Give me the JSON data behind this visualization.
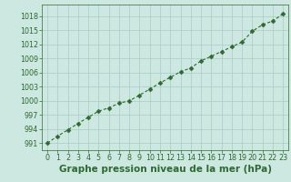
{
  "x": [
    0,
    1,
    2,
    3,
    4,
    5,
    6,
    7,
    8,
    9,
    10,
    11,
    12,
    13,
    14,
    15,
    16,
    17,
    18,
    19,
    20,
    21,
    22,
    23
  ],
  "y": [
    991.0,
    992.5,
    993.8,
    995.2,
    996.5,
    997.8,
    998.5,
    999.5,
    1000.0,
    1001.2,
    1002.5,
    1003.8,
    1005.0,
    1006.2,
    1007.0,
    1008.5,
    1009.5,
    1010.5,
    1011.5,
    1012.5,
    1014.8,
    1016.2,
    1017.0,
    1018.5
  ],
  "ylim": [
    989.5,
    1020.5
  ],
  "xlim": [
    -0.5,
    23.5
  ],
  "yticks": [
    991,
    994,
    997,
    1000,
    1003,
    1006,
    1009,
    1012,
    1015,
    1018
  ],
  "xticks": [
    0,
    1,
    2,
    3,
    4,
    5,
    6,
    7,
    8,
    9,
    10,
    11,
    12,
    13,
    14,
    15,
    16,
    17,
    18,
    19,
    20,
    21,
    22,
    23
  ],
  "xlabel": "Graphe pression niveau de la mer (hPa)",
  "line_color": "#2d6a2d",
  "marker": "D",
  "marker_size": 2.5,
  "bg_color": "#cce8e0",
  "grid_color": "#a8ccc4",
  "tick_color": "#2d6a2d",
  "label_color": "#2d6a2d",
  "tick_fontsize": 5.8,
  "xlabel_fontsize": 7.5
}
